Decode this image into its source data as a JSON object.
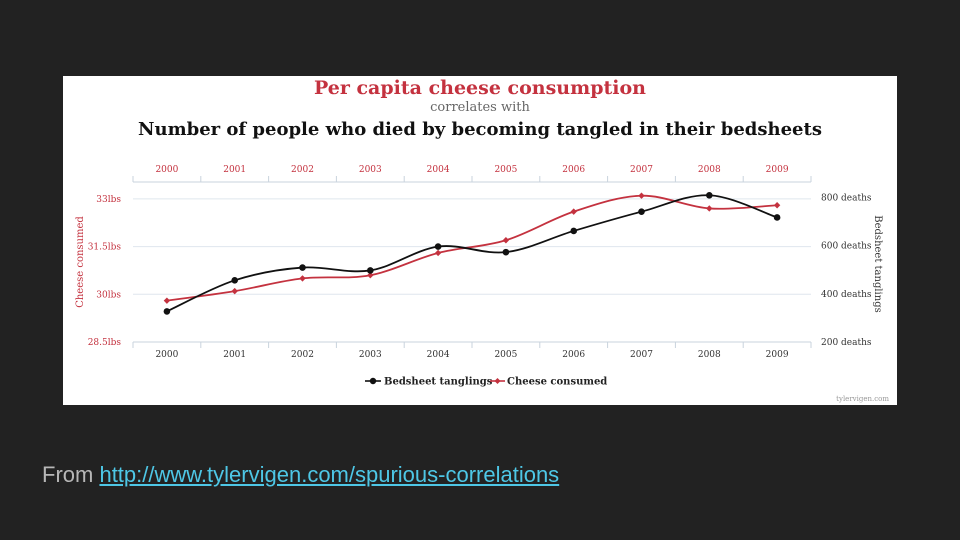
{
  "colors": {
    "background": "#222222",
    "panel": "#ffffff",
    "cheese": "#c4323f",
    "bedsheet": "#111111",
    "subtitle": "#666666",
    "footer_text": "#b7b7b7",
    "link": "#4ec7e6"
  },
  "chart_data": {
    "type": "line",
    "title": "Per capita cheese consumption",
    "subtitle": "correlates with",
    "title2": "Number of people who died by becoming tangled in their bedsheets",
    "x": [
      2000,
      2001,
      2002,
      2003,
      2004,
      2005,
      2006,
      2007,
      2008,
      2009
    ],
    "x_tick_labels": [
      "2000",
      "2001",
      "2002",
      "2003",
      "2004",
      "2005",
      "2006",
      "2007",
      "2008",
      "2009"
    ],
    "left_axis": {
      "label": "Cheese consumed",
      "ticks": [
        "28.5lbs",
        "30lbs",
        "31.5lbs",
        "33lbs"
      ],
      "tick_values": [
        28.5,
        30,
        31.5,
        33
      ],
      "range": [
        28.5,
        33.5
      ]
    },
    "right_axis": {
      "label": "Bedsheet tanglings",
      "ticks": [
        "200 deaths",
        "400 deaths",
        "600 deaths",
        "800 deaths"
      ],
      "tick_values": [
        200,
        400,
        600,
        800
      ],
      "range": [
        200,
        860
      ]
    },
    "series": [
      {
        "name": "Bedsheet tanglings",
        "axis": "right",
        "color": "#111111",
        "values": [
          327,
          456,
          509,
          497,
          596,
          573,
          661,
          741,
          809,
          717
        ]
      },
      {
        "name": "Cheese consumed",
        "axis": "left",
        "color": "#c4323f",
        "values": [
          29.8,
          30.1,
          30.5,
          30.6,
          31.3,
          31.7,
          32.6,
          33.1,
          32.7,
          32.8
        ]
      }
    ],
    "legend_position": "bottom-center",
    "grid": true,
    "watermark": "tylervigen.com"
  },
  "footer": {
    "prefix": "From ",
    "link_text": "http://www.tylervigen.com/spurious-correlations"
  }
}
